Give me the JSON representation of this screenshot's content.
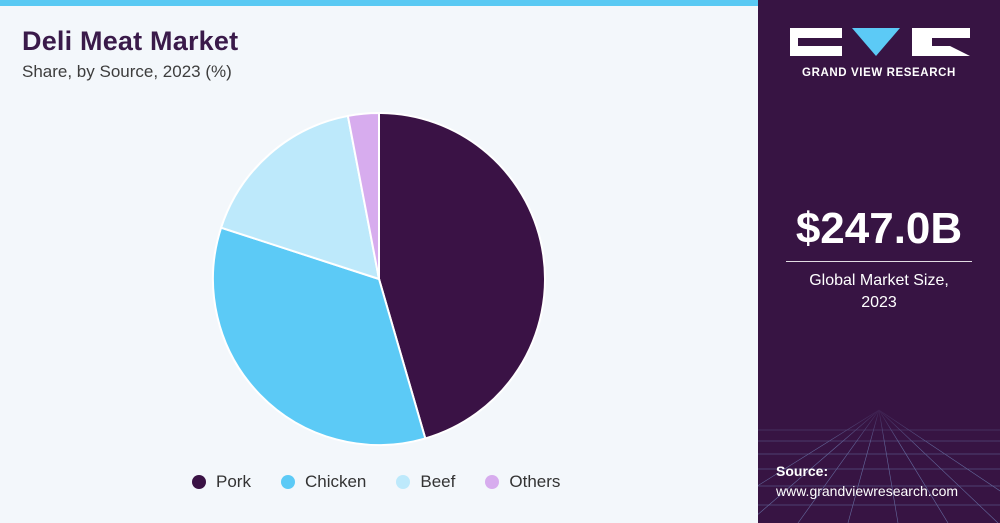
{
  "header": {
    "title": "Deli Meat Market",
    "subtitle": "Share, by Source, 2023 (%)"
  },
  "chart_data": {
    "type": "pie",
    "title": "Deli Meat Market",
    "subtitle": "Share, by Source, 2023 (%)",
    "categories": [
      "Pork",
      "Chicken",
      "Beef",
      "Others"
    ],
    "values": [
      45.5,
      34.5,
      17,
      3
    ],
    "colors": [
      "#3a1245",
      "#5ccaf6",
      "#bde9fb",
      "#d7acee"
    ],
    "start_angle": "12 o'clock",
    "direction": "clockwise",
    "legend_position": "bottom"
  },
  "sidebar": {
    "brand": "GRAND VIEW RESEARCH",
    "market_size_value": "$247.0B",
    "market_size_label_line1": "Global Market Size,",
    "market_size_label_line2": "2023",
    "source_label": "Source:",
    "source_url": "www.grandviewresearch.com"
  }
}
